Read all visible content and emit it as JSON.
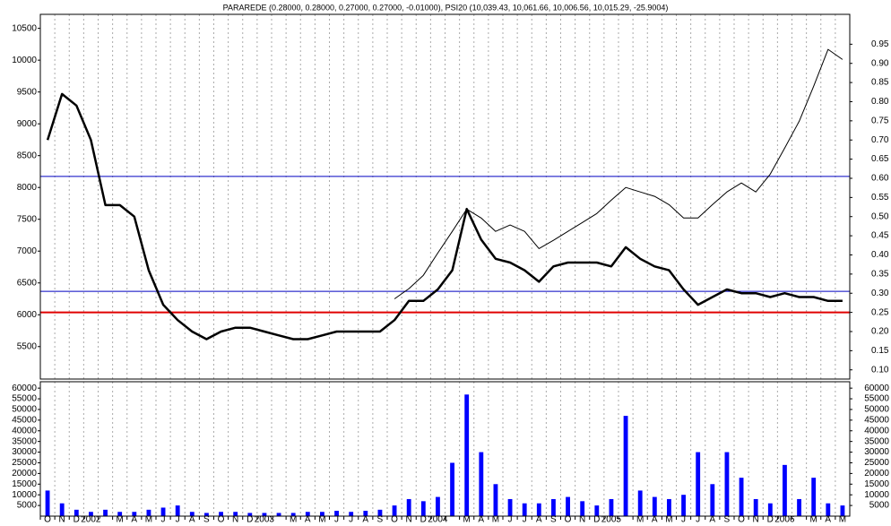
{
  "chart_data": {
    "type": "line",
    "title": "PARAREDE (0.28000, 0.28000, 0.27000, 0.27000, -0.01000), PSI20 (10,039.43, 10,061.66, 10,006.56, 10,015.29, -25.9004)",
    "categories": [
      "O",
      "N",
      "D",
      "2002",
      null,
      "M",
      "A",
      "M",
      "J",
      "J",
      "A",
      "S",
      "O",
      "N",
      "D",
      "2003",
      null,
      "M",
      "A",
      "M",
      "J",
      "J",
      "A",
      "S",
      "O",
      "N",
      "D",
      "2004",
      null,
      "M",
      "A",
      "M",
      "J",
      "J",
      "A",
      "S",
      "O",
      "N",
      "D",
      "2005",
      null,
      "M",
      "A",
      "M",
      "J",
      "J",
      "A",
      "S",
      "O",
      "N",
      "D",
      "2006",
      null,
      "M",
      "A",
      "M"
    ],
    "ylim": [
      4990,
      10720
    ],
    "yticks": [
      5500,
      6000,
      6500,
      7000,
      7500,
      8000,
      8500,
      9000,
      9500,
      10000,
      10500
    ],
    "y2lim": [
      0.076,
      1.028
    ],
    "y2ticks": [
      {
        "value": 0.1,
        "label": "0.10"
      },
      0.15,
      {
        "value": 0.2,
        "label": "0.20"
      },
      0.25,
      {
        "value": 0.3,
        "label": "0.30"
      },
      0.35,
      {
        "value": 0.4,
        "label": "0.40"
      },
      0.45,
      {
        "value": 0.5,
        "label": "0.50"
      },
      0.55,
      {
        "value": 0.6,
        "label": "0.60"
      },
      0.65,
      {
        "value": 0.7,
        "label": "0.70"
      },
      0.75,
      {
        "value": 0.8,
        "label": "0.80"
      },
      0.85,
      {
        "value": 0.9,
        "label": "0.90"
      },
      0.95
    ],
    "grid": true,
    "series": [
      {
        "name": "PARAREDE",
        "color": "#000000",
        "axis": "y2",
        "values": [
          0.7,
          0.82,
          0.79,
          0.7,
          0.53,
          0.53,
          0.5,
          0.36,
          0.27,
          0.23,
          0.2,
          0.18,
          0.2,
          0.21,
          0.21,
          0.2,
          0.19,
          0.18,
          0.18,
          0.19,
          0.2,
          0.2,
          0.2,
          0.2,
          0.23,
          0.28,
          0.28,
          0.31,
          0.36,
          0.52,
          0.44,
          0.39,
          0.38,
          0.36,
          0.33,
          0.37,
          0.38,
          0.38,
          0.38,
          0.37,
          0.42,
          0.39,
          0.37,
          0.36,
          0.31,
          0.27,
          0.29,
          0.31,
          0.3,
          0.3,
          0.29,
          0.3,
          0.29,
          0.29,
          0.28,
          0.28
        ]
      },
      {
        "name": "PSI20",
        "color": "#000000",
        "axis": "y",
        "values": [
          null,
          null,
          null,
          null,
          null,
          null,
          null,
          null,
          null,
          null,
          null,
          null,
          null,
          null,
          null,
          null,
          null,
          null,
          null,
          null,
          null,
          null,
          null,
          null,
          6250,
          6410,
          6620,
          6970,
          7310,
          7660,
          7520,
          7310,
          7410,
          7310,
          7040,
          7170,
          7310,
          7450,
          7590,
          7800,
          8000,
          7930,
          7860,
          7730,
          7520,
          7520,
          7730,
          7930,
          8070,
          7930,
          8210,
          8620,
          9040,
          9590,
          10170,
          10010
        ]
      }
    ],
    "reference_lines": [
      {
        "value": 0.605,
        "axis": "y2",
        "color": "#0000c0"
      },
      {
        "value": 0.305,
        "axis": "y2",
        "color": "#0000c0"
      },
      {
        "value": 0.25,
        "axis": "y2",
        "color": "#e00000"
      }
    ],
    "volume": {
      "type": "bar",
      "color": "#0000ff",
      "ylim": [
        0,
        63000
      ],
      "yticks": [
        5000,
        10000,
        15000,
        20000,
        25000,
        30000,
        35000,
        40000,
        45000,
        50000,
        55000,
        60000
      ],
      "values": [
        12000,
        6000,
        3000,
        2000,
        3000,
        2000,
        2000,
        3000,
        4000,
        5000,
        2000,
        1500,
        2000,
        2000,
        1500,
        1500,
        1500,
        1500,
        2000,
        2000,
        2500,
        2000,
        2500,
        3000,
        5000,
        8000,
        7000,
        9000,
        25000,
        57000,
        30000,
        15000,
        8000,
        6000,
        6000,
        8000,
        9000,
        7000,
        5000,
        8000,
        47000,
        12000,
        9000,
        8000,
        10000,
        30000,
        15000,
        30000,
        18000,
        8000,
        6000,
        24000,
        8000,
        18000,
        6000,
        5000
      ]
    }
  }
}
